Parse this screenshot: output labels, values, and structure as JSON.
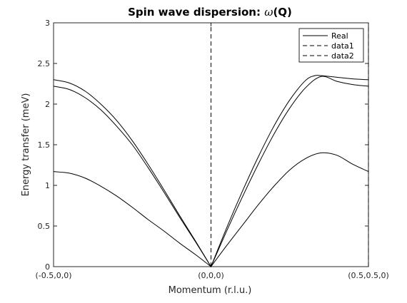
{
  "figure": {
    "title_prefix": "Spin wave dispersion: ",
    "title_omega": "ω",
    "title_suffix": "(Q)"
  },
  "chart_data": {
    "type": "line",
    "title": "Spin wave dispersion: ω(Q)",
    "xlabel": "Momentum (r.l.u.)",
    "ylabel": "Energy transfer (meV)",
    "xlim": [
      -0.5,
      0.5
    ],
    "ylim": [
      0,
      3
    ],
    "x_ticks": [
      {
        "value": -0.5,
        "label": "(-0.5,0,0)"
      },
      {
        "value": 0,
        "label": "(0,0,0)"
      },
      {
        "value": 0.5,
        "label": "(0.5,0.5,0)"
      }
    ],
    "y_ticks": [
      {
        "value": 0,
        "label": "0"
      },
      {
        "value": 0.5,
        "label": "0.5"
      },
      {
        "value": 1,
        "label": "1"
      },
      {
        "value": 1.5,
        "label": "1.5"
      },
      {
        "value": 2,
        "label": "2"
      },
      {
        "value": 2.5,
        "label": "2.5"
      },
      {
        "value": 3,
        "label": "3"
      }
    ],
    "grid": false,
    "legend": {
      "placement": "top-right",
      "entries": [
        {
          "label": "Real",
          "style": "solid"
        },
        {
          "label": "data1",
          "style": "dashed"
        },
        {
          "label": "data2",
          "style": "dashed"
        }
      ]
    },
    "series": [
      {
        "name": "Real",
        "style": "solid",
        "color": "#000000",
        "x": [
          -0.5,
          -0.45,
          -0.4,
          -0.35,
          -0.3,
          -0.25,
          -0.2,
          -0.15,
          -0.1,
          -0.05,
          0,
          0.05,
          0.1,
          0.15,
          0.2,
          0.25,
          0.3,
          0.33,
          0.35,
          0.4,
          0.45,
          0.5
        ],
        "y": [
          2.3,
          2.26,
          2.16,
          2.0,
          1.8,
          1.55,
          1.26,
          0.95,
          0.63,
          0.32,
          0,
          0.48,
          0.93,
          1.35,
          1.73,
          2.05,
          2.29,
          2.35,
          2.35,
          2.33,
          2.31,
          2.3
        ]
      },
      {
        "name": "Real",
        "style": "solid",
        "color": "#000000",
        "x": [
          -0.5,
          -0.45,
          -0.4,
          -0.35,
          -0.3,
          -0.25,
          -0.2,
          -0.15,
          -0.1,
          -0.05,
          0,
          0.05,
          0.1,
          0.15,
          0.2,
          0.25,
          0.3,
          0.35,
          0.4,
          0.45,
          0.5
        ],
        "y": [
          2.22,
          2.18,
          2.08,
          1.93,
          1.73,
          1.5,
          1.22,
          0.92,
          0.61,
          0.31,
          0,
          0.44,
          0.86,
          1.26,
          1.63,
          1.95,
          2.2,
          2.34,
          2.28,
          2.24,
          2.22
        ]
      },
      {
        "name": "Real",
        "style": "solid",
        "color": "#000000",
        "x": [
          -0.5,
          -0.45,
          -0.4,
          -0.35,
          -0.3,
          -0.25,
          -0.2,
          -0.15,
          -0.1,
          -0.05,
          0,
          0.05,
          0.1,
          0.15,
          0.2,
          0.25,
          0.3,
          0.35,
          0.4,
          0.45,
          0.5
        ],
        "y": [
          1.17,
          1.15,
          1.09,
          0.99,
          0.87,
          0.73,
          0.58,
          0.44,
          0.29,
          0.15,
          0,
          0.26,
          0.51,
          0.76,
          0.99,
          1.19,
          1.33,
          1.4,
          1.37,
          1.26,
          1.17
        ]
      },
      {
        "name": "data1",
        "style": "dashed",
        "color": "#000000",
        "x": [
          0,
          0
        ],
        "y": [
          0,
          3
        ]
      },
      {
        "name": "data2",
        "style": "dashed",
        "color": "#000000",
        "x": [
          0.5,
          0.5
        ],
        "y": [
          0,
          3
        ]
      }
    ]
  }
}
